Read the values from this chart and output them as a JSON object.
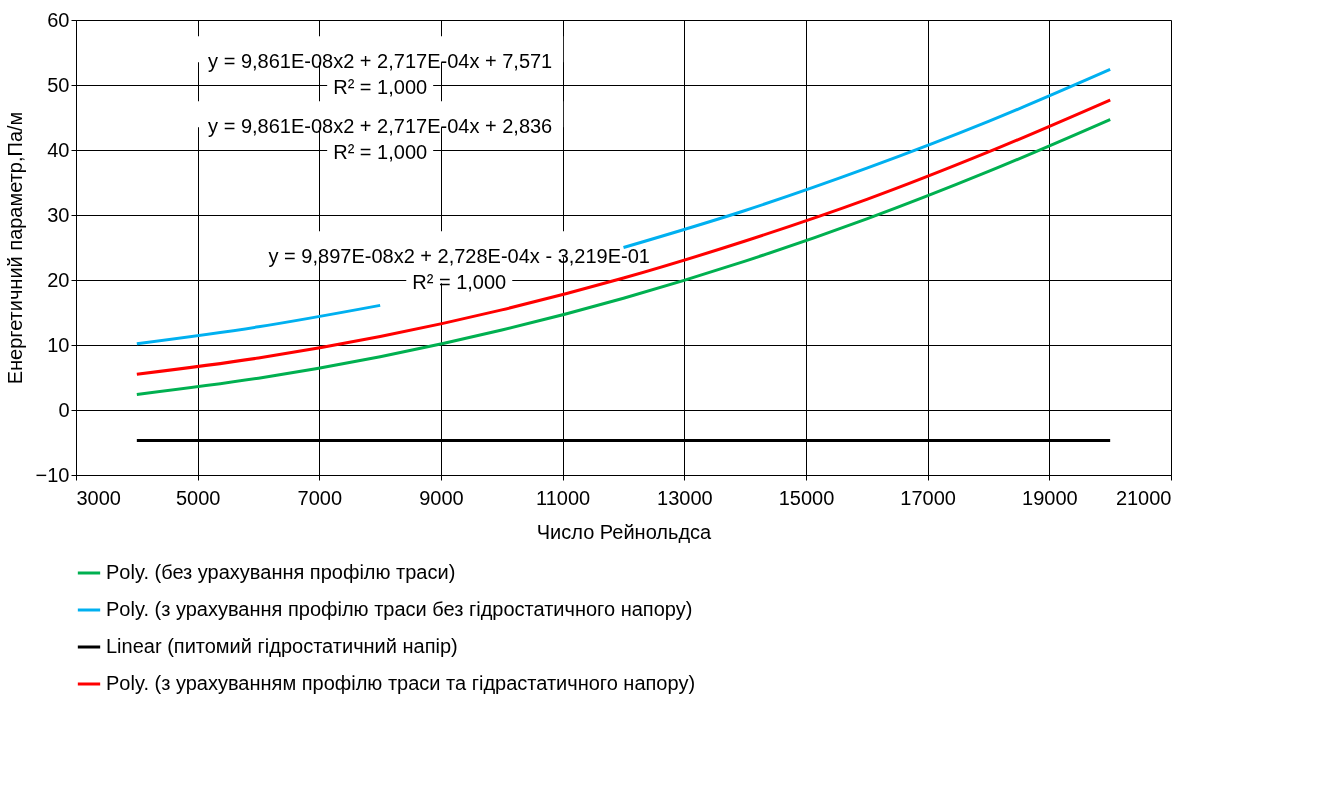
{
  "chart_data": {
    "type": "line",
    "xlabel": "Число Рейнольдса",
    "ylabel": "Енергетичний параметр,Па/м",
    "x": [
      4000,
      6000,
      8000,
      10000,
      12000,
      14000,
      16000,
      18000,
      20000
    ],
    "series": [
      {
        "name": "Poly. (без урахування профілю траси)",
        "color": "#00b050",
        "values": [
          2.4,
          4.9,
          8.2,
          12.3,
          17.2,
          22.9,
          29.4,
          36.7,
          44.7
        ]
      },
      {
        "name": "Poly. (з урахування профілю траси без гідростатичного напору)",
        "color": "#00b0f0",
        "values": [
          10.2,
          12.8,
          16.1,
          null,
          25.0,
          30.7,
          37.2,
          44.4,
          52.4
        ]
      },
      {
        "name": "Linear (питомий гідростатичний напір)",
        "color": "#000000",
        "values": [
          -4.7,
          -4.7,
          -4.7,
          -4.7,
          -4.7,
          -4.7,
          -4.7,
          -4.7,
          -4.7
        ]
      },
      {
        "name": "Poly. (з урахуванням профілю траси та гідрастатичного напору)",
        "color": "#ff0000",
        "values": [
          5.5,
          8.0,
          11.3,
          15.4,
          20.3,
          26.0,
          32.4,
          39.7,
          47.7
        ]
      }
    ],
    "xlim": [
      3000,
      21000
    ],
    "xticks": [
      3000,
      5000,
      7000,
      9000,
      11000,
      13000,
      15000,
      17000,
      19000,
      21000
    ],
    "ylim": [
      -10,
      60
    ],
    "yticks": [
      -10,
      0,
      10,
      20,
      30,
      40,
      50,
      60
    ],
    "grid": true,
    "legend": "bottom",
    "marker": "none",
    "line_style": "solid",
    "annotations": [
      "y = 9,861E-08x2 + 2,717E-04x + 7,571\nR² = 1,000",
      "y = 9,861E-08x2 + 2,717E-04x + 2,836\nR² = 1,000",
      "y = 9,897E-08x2 + 2,728E-04x - 3,219E-01\nR² = 1,000"
    ]
  }
}
